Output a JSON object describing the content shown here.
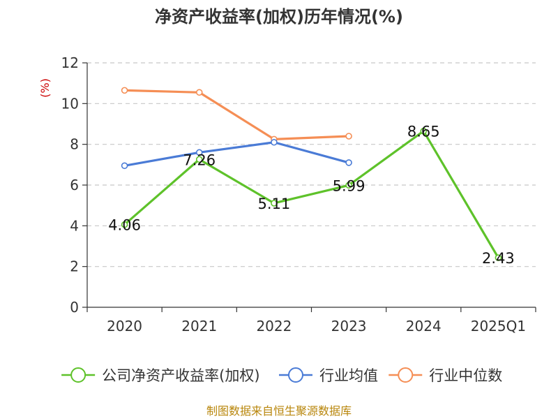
{
  "chart_data": {
    "type": "line",
    "title": "净资产收益率(加权)历年情况(%)",
    "ylabel": "(%)",
    "ylim": [
      0,
      12
    ],
    "yticks": [
      0,
      2,
      4,
      6,
      8,
      10,
      12
    ],
    "categories": [
      "2020",
      "2021",
      "2022",
      "2023",
      "2024",
      "2025Q1"
    ],
    "grid": true,
    "legend_position": "bottom",
    "series": [
      {
        "name": "公司净资产收益率(加权)",
        "color": "#5ec22a",
        "values": [
          4.06,
          7.26,
          5.11,
          5.99,
          8.65,
          2.43
        ],
        "labels": [
          "4.06",
          "7.26",
          "5.11",
          "5.99",
          "8.65",
          "2.43"
        ]
      },
      {
        "name": "行业均值",
        "color": "#4a7bd6",
        "values": [
          6.95,
          7.6,
          8.1,
          7.1,
          null,
          null
        ]
      },
      {
        "name": "行业中位数",
        "color": "#f58e55",
        "values": [
          10.65,
          10.55,
          8.25,
          8.4,
          null,
          null
        ]
      }
    ]
  },
  "source_text": "制图数据来自恒生聚源数据库"
}
